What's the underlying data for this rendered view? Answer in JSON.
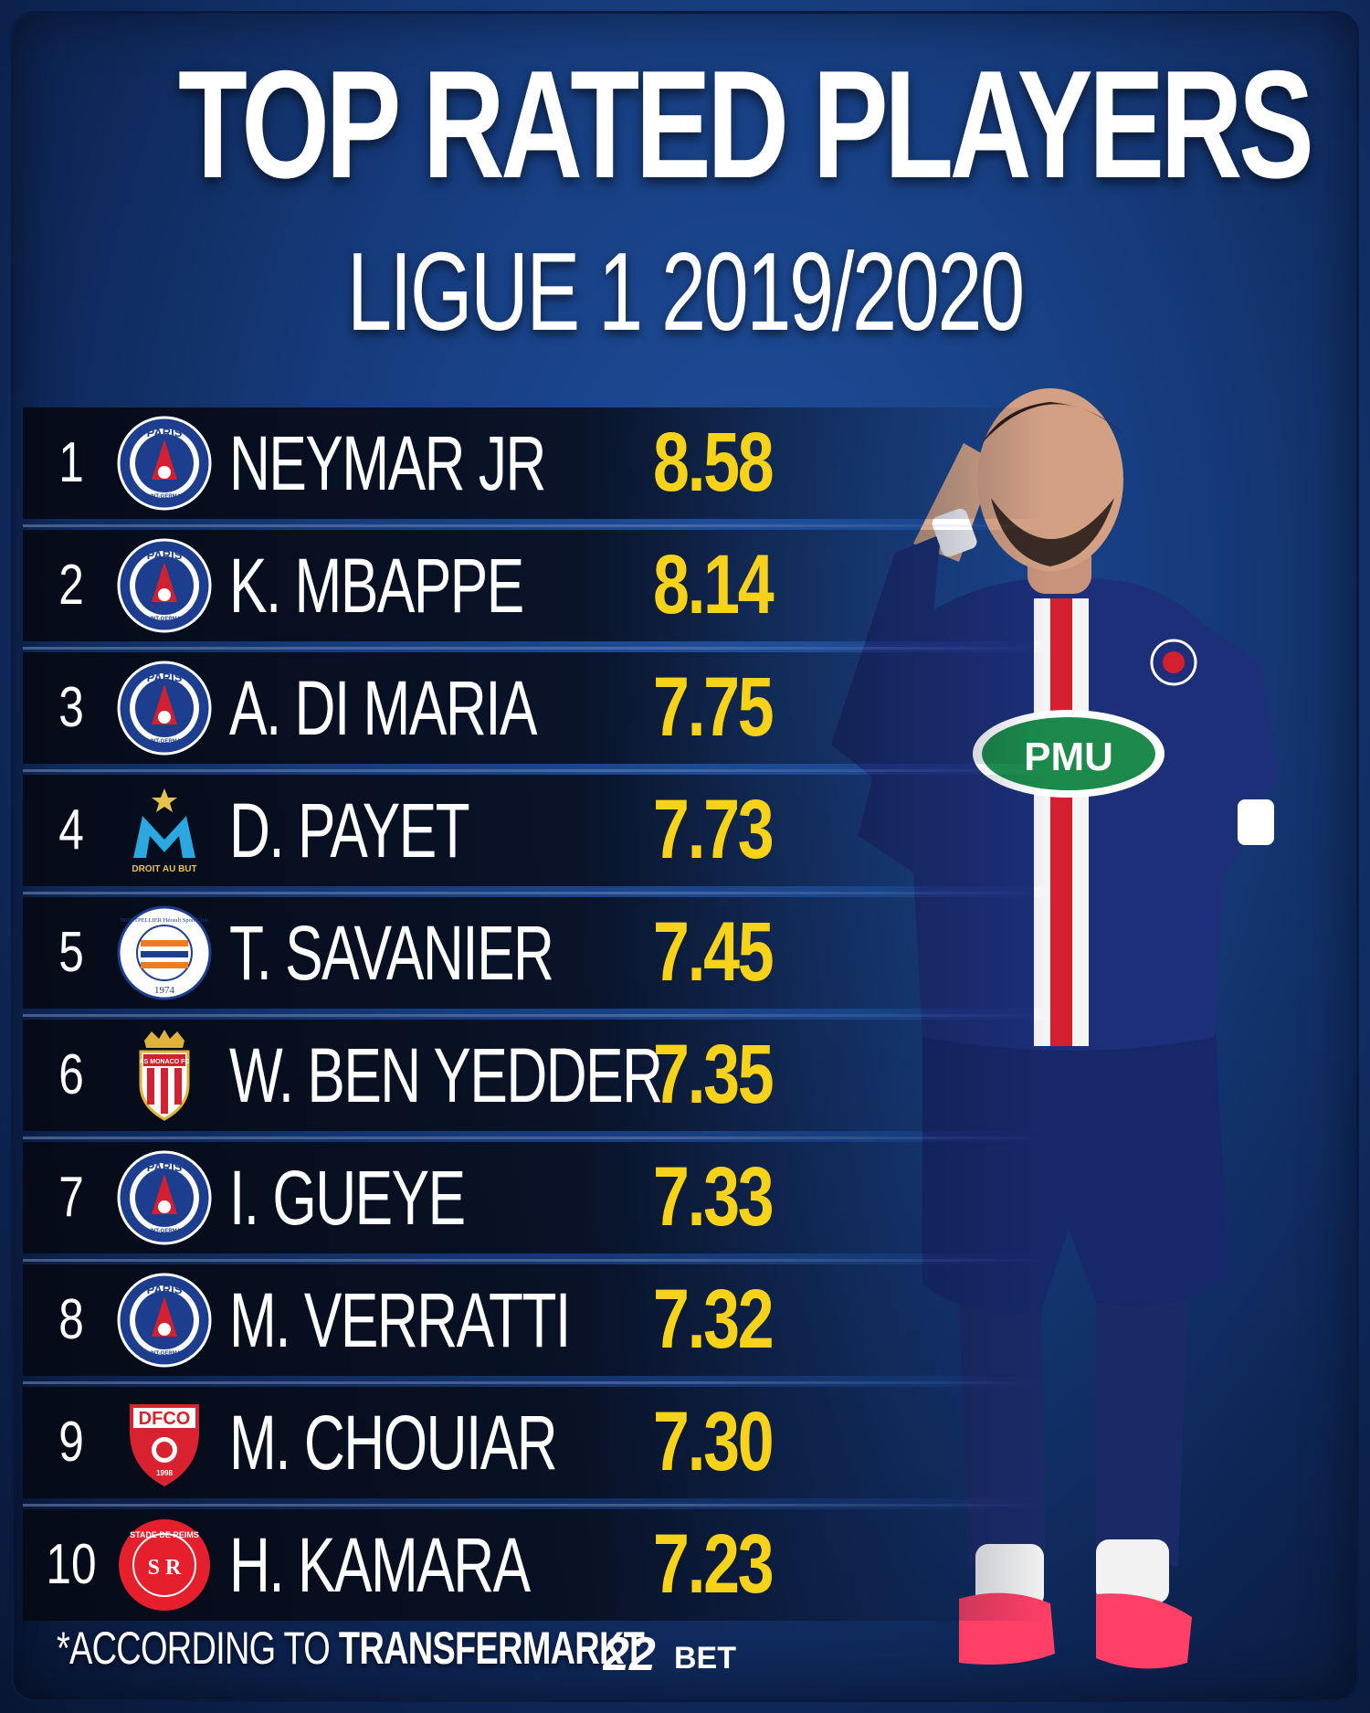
{
  "header": {
    "title": "TOP RATED PLAYERS",
    "subtitle": "LIGUE 1 2019/2020"
  },
  "players": [
    {
      "rank": "1",
      "name": "NEYMAR JR",
      "rating": "8.58",
      "club_icon": "psg-crest-icon"
    },
    {
      "rank": "2",
      "name": "K. MBAPPE",
      "rating": "8.14",
      "club_icon": "psg-crest-icon"
    },
    {
      "rank": "3",
      "name": "A. DI MARIA",
      "rating": "7.75",
      "club_icon": "psg-crest-icon"
    },
    {
      "rank": "4",
      "name": "D. PAYET",
      "rating": "7.73",
      "club_icon": "marseille-crest-icon"
    },
    {
      "rank": "5",
      "name": "T. SAVANIER",
      "rating": "7.45",
      "club_icon": "montpellier-crest-icon"
    },
    {
      "rank": "6",
      "name": "W. BEN YEDDER",
      "rating": "7.35",
      "club_icon": "monaco-crest-icon"
    },
    {
      "rank": "7",
      "name": "I. GUEYE",
      "rating": "7.33",
      "club_icon": "psg-crest-icon"
    },
    {
      "rank": "8",
      "name": "M. VERRATTI",
      "rating": "7.32",
      "club_icon": "psg-crest-icon"
    },
    {
      "rank": "9",
      "name": "M. CHOUIAR",
      "rating": "7.30",
      "club_icon": "dijon-crest-icon"
    },
    {
      "rank": "10",
      "name": "H. KAMARA",
      "rating": "7.23",
      "club_icon": "reims-crest-icon"
    }
  ],
  "crest_text": {
    "psg_top": "PARIS",
    "psg_bottom": "SAINT-GERMAIN",
    "marseille": "DROIT AU BUT",
    "montpellier_ring": "MONTPELLIER Hérault Sport Club",
    "montpellier_year": "1974",
    "monaco": "AS MONACO FC",
    "dijon": "DFCO",
    "dijon_year": "1998",
    "reims_ring": "STADE DE REIMS",
    "reims_initials": "S R"
  },
  "footer": {
    "note_prefix": "*ACCORDING TO ",
    "note_source": "TRANSFERMARKT",
    "brand_number": "22",
    "brand_text": "BET"
  },
  "photo": {
    "shirt_sponsor": "PMU"
  },
  "colors": {
    "rating": "#f7d21a",
    "background": "#163c7d",
    "row": "#070d1e",
    "psg_blue": "#1d3d8f",
    "psg_red": "#d4202e"
  }
}
